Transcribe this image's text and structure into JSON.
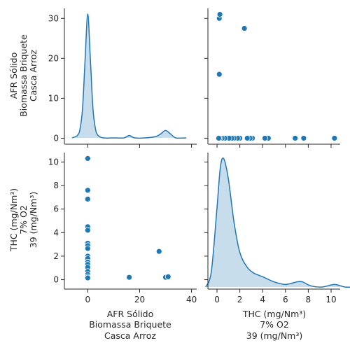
{
  "chart_data": {
    "type": "pairplot",
    "variables": [
      {
        "id": "afr",
        "label_lines": [
          "AFR Sólido",
          "Biomassa Briquete",
          "Casca Arroz"
        ],
        "range": [
          -9,
          42
        ],
        "ticks": [
          0,
          20,
          40
        ]
      },
      {
        "id": "thc",
        "label_lines": [
          "THC (mg/Nm³)",
          "7% O2",
          "39 (mg/Nm³)"
        ],
        "range": [
          -0.8,
          10.8
        ],
        "ticks": [
          0,
          2,
          4,
          6,
          8,
          10
        ]
      }
    ],
    "afr_kde_axis": {
      "range": [
        -1.5,
        32.5
      ],
      "ticks": [
        0,
        10,
        20,
        30
      ]
    },
    "color": "#1f77b4",
    "points": [
      {
        "afr": 0,
        "thc": 10.3
      },
      {
        "afr": 0,
        "thc": 7.6
      },
      {
        "afr": 0,
        "thc": 6.85
      },
      {
        "afr": 0,
        "thc": 4.5
      },
      {
        "afr": 0,
        "thc": 4.2
      },
      {
        "afr": 0,
        "thc": 3.1
      },
      {
        "afr": 0,
        "thc": 2.9
      },
      {
        "afr": 0,
        "thc": 2.65
      },
      {
        "afr": 0,
        "thc": 2.0
      },
      {
        "afr": 0,
        "thc": 1.8
      },
      {
        "afr": 0,
        "thc": 1.5
      },
      {
        "afr": 0,
        "thc": 1.3
      },
      {
        "afr": 0,
        "thc": 1.05
      },
      {
        "afr": 0,
        "thc": 0.7
      },
      {
        "afr": 0,
        "thc": 0.45
      },
      {
        "afr": 0,
        "thc": 0.25
      },
      {
        "afr": 0,
        "thc": 0.15
      },
      {
        "afr": 16,
        "thc": 0.2
      },
      {
        "afr": 27.5,
        "thc": 2.4
      },
      {
        "afr": 30,
        "thc": 0.2
      },
      {
        "afr": 31,
        "thc": 0.25
      }
    ],
    "afr_kde": {
      "x": [
        -6,
        -4,
        -3,
        -2,
        -1,
        0,
        1,
        2,
        3,
        4,
        6,
        10,
        14,
        16,
        18,
        22,
        26,
        28,
        30,
        32,
        34,
        38
      ],
      "density": [
        0.0,
        0.02,
        0.07,
        0.24,
        0.64,
        1.0,
        0.64,
        0.24,
        0.07,
        0.02,
        0.0,
        0.0,
        0.0,
        0.02,
        0.0,
        0.0,
        0.01,
        0.03,
        0.06,
        0.03,
        0.0,
        0.0
      ]
    },
    "thc_kde": {
      "x": [
        -1,
        -0.5,
        0,
        0.3,
        0.6,
        1.0,
        1.5,
        2.0,
        2.6,
        3.2,
        4.0,
        5.0,
        6.0,
        7.0,
        7.5,
        8.2,
        9.2,
        10.3,
        11.2,
        12.0
      ],
      "density": [
        0.0,
        0.12,
        0.62,
        0.94,
        1.0,
        0.84,
        0.5,
        0.27,
        0.16,
        0.11,
        0.08,
        0.04,
        0.02,
        0.04,
        0.04,
        0.01,
        0.0,
        0.02,
        0.0,
        0.0
      ]
    }
  }
}
